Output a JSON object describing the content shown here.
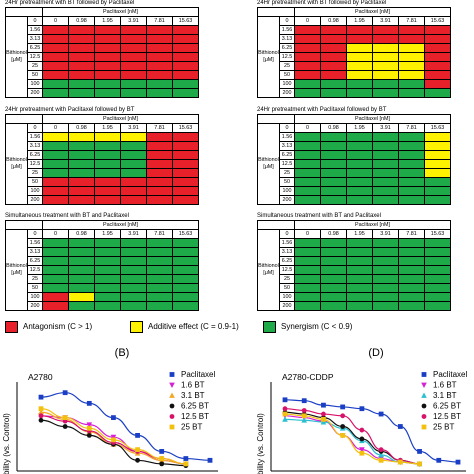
{
  "colors": {
    "antagonism": "#e8202a",
    "additive": "#fff200",
    "synergism": "#1faa4a"
  },
  "heatmaps": {
    "col_header": "Paclitaxel [nM]",
    "row_title_line1": "Bithionol",
    "row_title_line2": "[μM]",
    "col_values": [
      "0",
      "0.98",
      "1.95",
      "3.91",
      "7.81",
      "15.63",
      "31.25"
    ],
    "row_values": [
      "0",
      "1.56",
      "3.13",
      "6.25",
      "12.5",
      "25",
      "50",
      "100",
      "200"
    ],
    "panels": [
      {
        "title": "24Hr pretreatment with BT followed by Paclitaxel",
        "cells": [
          "RRRRRR",
          "RRRRRR",
          "RRRRRR",
          "RRRRRR",
          "RRRRRR",
          "RRRRRR",
          "GGGGGG",
          "GGGGGG"
        ]
      },
      {
        "title": "24Hr pretreatment with BT followed by Paclitaxel",
        "cells": [
          "RRRRRR",
          "RRRRRR",
          "RRYYYR",
          "RRYYYR",
          "RRYYYR",
          "RRYYYR",
          "GGGGGR",
          "GGGGGG"
        ]
      },
      {
        "title": "24Hr pretreatment with Paclitaxel followed by BT",
        "cells": [
          "YYYYRR",
          "GGGGRR",
          "GGGGRR",
          "GGGGRR",
          "GGGGRR",
          "RRRRRR",
          "RRRRRR",
          "RRRRRR"
        ]
      },
      {
        "title": "24Hr pretreatment with Paclitaxel followed by BT",
        "cells": [
          "GGGGGY",
          "GGGGGY",
          "GGGGGY",
          "GGGGGY",
          "GGGGGY",
          "GGGGGG",
          "GGGGGG",
          "GGGGGG"
        ]
      },
      {
        "title": "Simultaneous treatment with BT and Paclitaxel",
        "cells": [
          "GGGGGG",
          "GGGGGG",
          "GGGGGG",
          "GGGGGG",
          "GGGGGG",
          "GGGGGG",
          "RYGGGG",
          "RGGGGG"
        ]
      },
      {
        "title": "Simultaneous treatment with BT and Paclitaxel",
        "cells": [
          "GGGGGG",
          "GGGGGG",
          "GGGGGG",
          "GGGGGG",
          "GGGGGG",
          "GGGGGG",
          "GGGGGG",
          "GGGGGG"
        ]
      }
    ]
  },
  "legend": [
    {
      "key": "antagonism",
      "label": "Antagonism (C > 1)"
    },
    {
      "key": "additive",
      "label": "Additive effect (C = 0.9-1)"
    },
    {
      "key": "synergism",
      "label": "Synergism (C < 0.9)"
    }
  ],
  "chart_data": [
    {
      "type": "scatter",
      "panel_label": "(B)",
      "title": "A2780",
      "ylabel": "% Viability (vs. Control)",
      "x_index": [
        0,
        1,
        2,
        3,
        4,
        5,
        6,
        7
      ],
      "ylim": [
        0,
        100
      ],
      "series": [
        {
          "name": "Paclitaxel",
          "color": "#1a3fc4",
          "marker": "square",
          "values": [
            83,
            88,
            76,
            60,
            40,
            22,
            14,
            12
          ]
        },
        {
          "name": "1.6 BT",
          "color": "#d61fd6",
          "marker": "triangle-down",
          "values": [
            62,
            60,
            52,
            38,
            22,
            12,
            8,
            null
          ]
        },
        {
          "name": "3.1 BT",
          "color": "#f5a623",
          "marker": "triangle-up",
          "values": [
            66,
            58,
            44,
            30,
            20,
            12,
            8,
            null
          ]
        },
        {
          "name": "6.25 BT",
          "color": "#111111",
          "marker": "circle",
          "values": [
            57,
            50,
            40,
            30,
            12,
            8,
            6,
            null
          ]
        },
        {
          "name": "12.5 BT",
          "color": "#d8116b",
          "marker": "circle",
          "values": [
            62,
            56,
            45,
            32,
            22,
            14,
            8,
            null
          ]
        },
        {
          "name": "25 BT",
          "color": "#f2c10f",
          "marker": "square",
          "values": [
            70,
            60,
            48,
            35,
            24,
            14,
            8,
            null
          ]
        }
      ]
    },
    {
      "type": "scatter",
      "panel_label": "(D)",
      "title": "A2780-CDDP",
      "ylabel": "% Viability (vs. Control)",
      "x_index": [
        0,
        1,
        2,
        3,
        4,
        5,
        6,
        7,
        8,
        9
      ],
      "ylim": [
        0,
        100
      ],
      "series": [
        {
          "name": "Paclitaxel",
          "color": "#1a3fc4",
          "marker": "square",
          "values": [
            80,
            79,
            74,
            72,
            70,
            64,
            50,
            22,
            12,
            10
          ]
        },
        {
          "name": "1.6 BT",
          "color": "#d61fd6",
          "marker": "triangle-down",
          "values": [
            62,
            60,
            56,
            40,
            24,
            14,
            10,
            8,
            null,
            null
          ]
        },
        {
          "name": "3.1 BT",
          "color": "#2bbfcf",
          "marker": "triangle-up",
          "values": [
            58,
            57,
            55,
            48,
            34,
            18,
            10,
            8,
            null,
            null
          ]
        },
        {
          "name": "6.25 BT",
          "color": "#111111",
          "marker": "circle",
          "values": [
            66,
            64,
            60,
            50,
            36,
            22,
            12,
            8,
            null,
            null
          ]
        },
        {
          "name": "12.5 BT",
          "color": "#d8116b",
          "marker": "circle",
          "values": [
            70,
            68,
            64,
            62,
            46,
            24,
            12,
            8,
            null,
            null
          ]
        },
        {
          "name": "25 BT",
          "color": "#f2c10f",
          "marker": "square",
          "values": [
            64,
            62,
            58,
            40,
            20,
            12,
            10,
            8,
            null,
            null
          ]
        }
      ]
    }
  ]
}
